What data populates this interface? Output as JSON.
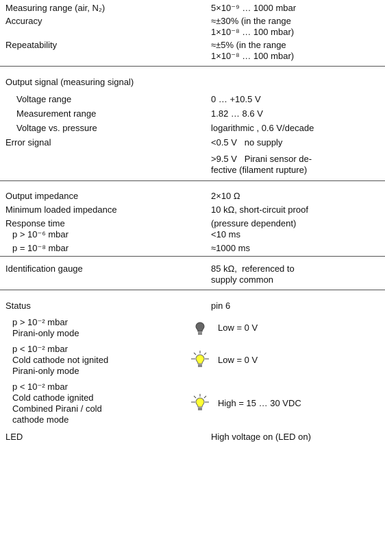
{
  "rows": [
    {
      "label": [
        "Measuring range (air, N₂)"
      ],
      "value": [
        "5×10⁻⁹ … 1000 mbar"
      ]
    },
    {
      "label": [
        "Accuracy"
      ],
      "value": [
        "≈±30% (in the range",
        "1×10⁻⁸ … 100 mbar)"
      ]
    },
    {
      "label": [
        "Repeatability"
      ],
      "value": [
        "≈±5% (in the range",
        "1×10⁻⁸ … 100 mbar)"
      ]
    },
    {
      "label": [
        "Output signal (measuring signal)"
      ]
    },
    {
      "label": [
        "Voltage range"
      ],
      "value": [
        "0 … +10.5 V"
      ]
    },
    {
      "label": [
        "Measurement range"
      ],
      "value": [
        "1.82 … 8.6 V"
      ]
    },
    {
      "label": [
        "Voltage vs. pressure"
      ],
      "value": [
        "logarithmic , 0.6 V/decade"
      ]
    },
    {
      "label": [
        "Error signal"
      ],
      "value": [
        "<0.5 V   no supply",
        ">9.5 V   Pirani sensor de-",
        "fective (filament rupture)"
      ]
    },
    {
      "label": [
        "Output impedance"
      ],
      "value": [
        "2×10 Ω"
      ]
    },
    {
      "label": [
        "Minimum loaded impedance"
      ],
      "value": [
        "10 kΩ, short-circuit proof"
      ]
    },
    {
      "label": [
        "Response time"
      ],
      "value": [
        "(pressure dependent)"
      ]
    },
    {
      "label": [
        "p > 10⁻⁶ mbar"
      ],
      "value": [
        "<10 ms"
      ]
    },
    {
      "label": [
        "p = 10⁻⁸ mbar"
      ],
      "value": [
        "≈1000 ms"
      ]
    },
    {
      "label": [
        "Identification gauge"
      ],
      "value": [
        "85 kΩ,  referenced to",
        "supply common"
      ]
    },
    {
      "label": [
        "Status"
      ],
      "value": [
        "pin 6"
      ]
    },
    {
      "label": [
        "p > 10⁻² mbar",
        "Pirani-only mode"
      ],
      "value": [
        "Low = 0 V"
      ]
    },
    {
      "label": [
        "p < 10⁻² mbar",
        "Cold cathode not ignited",
        "Pirani-only mode"
      ],
      "value": [
        "Low = 0 V"
      ]
    },
    {
      "label": [
        "p < 10⁻² mbar",
        "Cold cathode ignited",
        "Combined Pirani / cold",
        "cathode mode"
      ],
      "value": [
        "High = 15 … 30 VDC"
      ]
    },
    {
      "label": [
        "LED"
      ],
      "value": [
        "High voltage on (LED on)"
      ]
    }
  ]
}
